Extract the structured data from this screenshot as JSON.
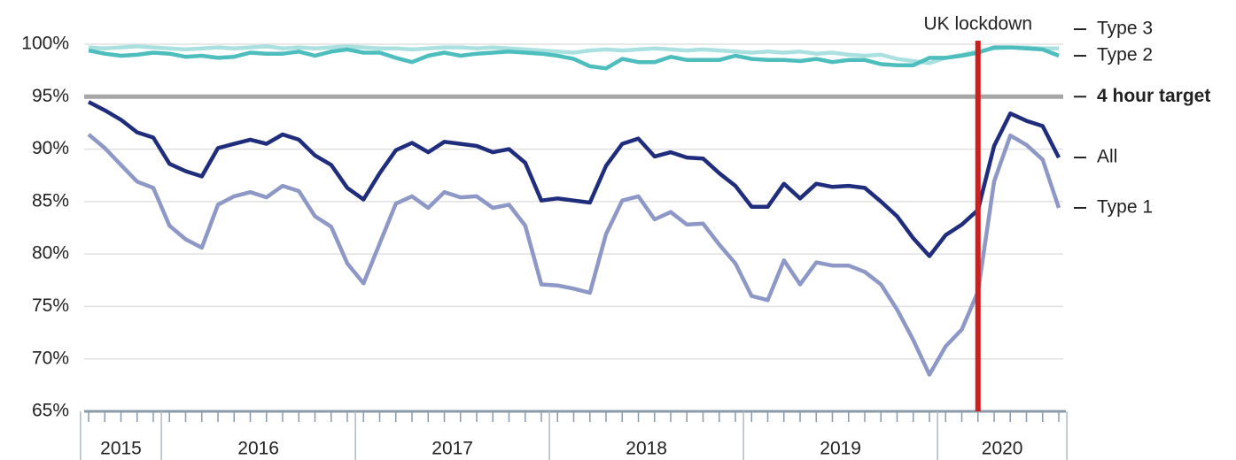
{
  "chart_data": {
    "type": "line",
    "categories": [
      "2015",
      null,
      null,
      null,
      null,
      "2016",
      null,
      null,
      null,
      null,
      null,
      null,
      null,
      null,
      null,
      null,
      null,
      "2017",
      null,
      null,
      null,
      null,
      null,
      null,
      null,
      null,
      null,
      null,
      null,
      "2018",
      null,
      null,
      null,
      null,
      null,
      null,
      null,
      null,
      null,
      null,
      null,
      "2019",
      null,
      null,
      null,
      null,
      null,
      null,
      null,
      null,
      null,
      null,
      null,
      "2020",
      null,
      null,
      null,
      null,
      null,
      null,
      null
    ],
    "series": [
      {
        "name": "Type 3",
        "color": "#abe0e0",
        "values": [
          99.7,
          99.6,
          99.7,
          99.8,
          99.7,
          99.6,
          99.5,
          99.6,
          99.7,
          99.6,
          99.7,
          99.8,
          99.6,
          99.7,
          99.6,
          99.7,
          99.8,
          99.7,
          99.6,
          99.6,
          99.5,
          99.6,
          99.7,
          99.7,
          99.6,
          99.7,
          99.6,
          99.5,
          99.4,
          99.3,
          99.2,
          99.4,
          99.5,
          99.4,
          99.5,
          99.6,
          99.5,
          99.4,
          99.5,
          99.4,
          99.3,
          99.2,
          99.3,
          99.2,
          99.3,
          99.1,
          99.2,
          99.0,
          98.9,
          99.0,
          98.6,
          98.4,
          98.2,
          98.7,
          99.0,
          99.3,
          99.6,
          99.7,
          99.7,
          99.6,
          99.6
        ]
      },
      {
        "name": "Type 2",
        "color": "#4dbdbd",
        "values": [
          99.4,
          99.1,
          98.9,
          99.0,
          99.2,
          99.1,
          98.8,
          98.9,
          98.7,
          98.8,
          99.2,
          99.1,
          99.1,
          99.3,
          98.9,
          99.3,
          99.5,
          99.2,
          99.2,
          98.7,
          98.3,
          98.9,
          99.2,
          98.9,
          99.1,
          99.2,
          99.3,
          99.2,
          99.1,
          98.9,
          98.6,
          97.9,
          97.7,
          98.6,
          98.3,
          98.3,
          98.8,
          98.5,
          98.5,
          98.5,
          98.9,
          98.6,
          98.5,
          98.5,
          98.4,
          98.6,
          98.3,
          98.5,
          98.5,
          98.1,
          98.0,
          98.0,
          98.7,
          98.7,
          98.9,
          99.2,
          99.7,
          99.7,
          99.6,
          99.5,
          98.9
        ]
      },
      {
        "name": "Type 1",
        "color": "#8e98c6",
        "values": [
          91.4,
          90.1,
          88.5,
          86.9,
          86.3,
          82.7,
          81.4,
          80.6,
          84.7,
          85.5,
          85.9,
          85.4,
          86.5,
          86.0,
          83.6,
          82.6,
          79.1,
          77.2,
          81.0,
          84.8,
          85.5,
          84.4,
          85.9,
          85.4,
          85.5,
          84.4,
          84.7,
          82.7,
          77.1,
          77.0,
          76.7,
          76.3,
          81.9,
          85.1,
          85.5,
          83.3,
          84.0,
          82.8,
          82.9,
          80.9,
          79.1,
          76.0,
          75.6,
          79.4,
          77.1,
          79.2,
          78.9,
          78.9,
          78.3,
          77.1,
          74.7,
          71.8,
          68.5,
          71.2,
          72.8,
          76.4,
          86.9,
          91.3,
          90.4,
          89.0,
          84.4
        ]
      },
      {
        "name": "All",
        "color": "#1f2d7c",
        "values": [
          94.5,
          93.7,
          92.8,
          91.6,
          91.1,
          88.6,
          87.9,
          87.4,
          90.1,
          90.5,
          90.9,
          90.5,
          91.4,
          90.9,
          89.4,
          88.5,
          86.3,
          85.2,
          87.7,
          89.9,
          90.6,
          89.7,
          90.7,
          90.5,
          90.3,
          89.7,
          90.0,
          88.7,
          85.1,
          85.3,
          85.1,
          84.9,
          88.4,
          90.5,
          91.0,
          89.3,
          89.7,
          89.2,
          89.1,
          87.7,
          86.5,
          84.5,
          84.5,
          86.7,
          85.3,
          86.7,
          86.4,
          86.5,
          86.3,
          85.0,
          83.6,
          81.5,
          79.8,
          81.8,
          82.8,
          84.2,
          90.3,
          93.4,
          92.7,
          92.2,
          89.2
        ]
      }
    ],
    "target": {
      "name": "4 hour target",
      "value": 95,
      "color": "#a6a6a6"
    },
    "annotation": {
      "text": "UK lockdown",
      "x": 55,
      "color": "#cc1f1f"
    },
    "ylim": [
      65,
      100
    ],
    "yticks": [
      {
        "value": 65,
        "label": "65%"
      },
      {
        "value": 70,
        "label": "70%"
      },
      {
        "value": 75,
        "label": "75%"
      },
      {
        "value": 80,
        "label": "80%"
      },
      {
        "value": 85,
        "label": "85%"
      },
      {
        "value": 90,
        "label": "90%"
      },
      {
        "value": 95,
        "label": "95%"
      },
      {
        "value": 100,
        "label": "100%"
      }
    ],
    "grid": true
  }
}
